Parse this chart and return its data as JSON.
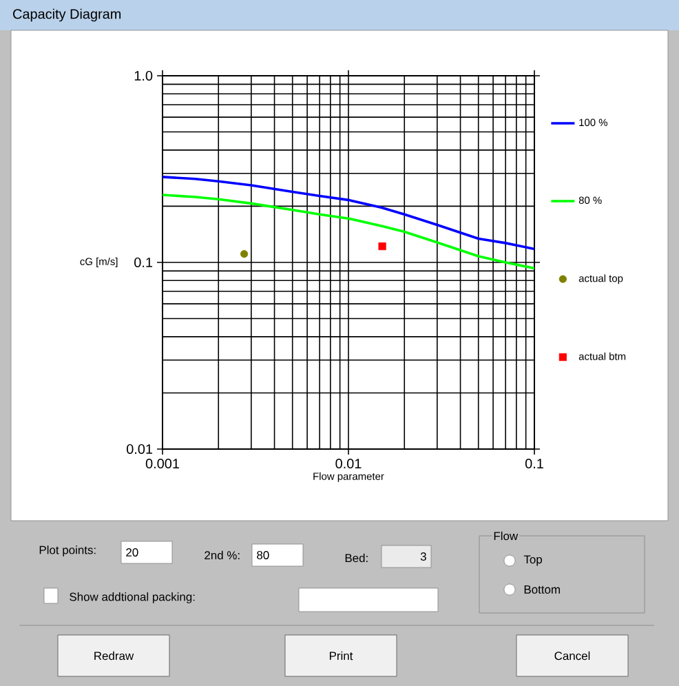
{
  "chart_data": {
    "type": "line",
    "title": "Capacity Diagram",
    "xlabel": "Flow parameter",
    "ylabel": "cG [m/s]",
    "log": "xy",
    "grid": true,
    "legend": "right",
    "xlim": [
      0.001,
      0.1
    ],
    "xticks": [
      0.001,
      0.01,
      0.1
    ],
    "ylim": [
      0.01,
      1
    ],
    "yticks": [
      0.01,
      0.1,
      {
        "value": 1,
        "label": "1.0"
      }
    ],
    "series": [
      {
        "name": "100 %",
        "color": "#0000ff",
        "marker": "none",
        "x": [
          0.001,
          0.0015,
          0.002,
          0.003,
          0.005,
          0.007,
          0.01,
          0.015,
          0.02,
          0.03,
          0.05,
          0.07,
          0.1
        ],
        "values": [
          0.287,
          0.28,
          0.272,
          0.259,
          0.239,
          0.227,
          0.216,
          0.197,
          0.181,
          0.159,
          0.134,
          0.127,
          0.118
        ]
      },
      {
        "name": "80 %",
        "color": "#00ff00",
        "marker": "none",
        "x": [
          0.001,
          0.0015,
          0.002,
          0.003,
          0.005,
          0.007,
          0.01,
          0.015,
          0.02,
          0.03,
          0.05,
          0.07,
          0.1
        ],
        "values": [
          0.23,
          0.224,
          0.218,
          0.207,
          0.191,
          0.181,
          0.172,
          0.157,
          0.146,
          0.128,
          0.108,
          0.1,
          0.093
        ]
      },
      {
        "name": "actual top",
        "type": "scatter",
        "color": "#808000",
        "marker": "circle",
        "x": [
          0.00275
        ],
        "values": [
          0.111
        ]
      },
      {
        "name": "actual btm",
        "type": "scatter",
        "color": "#ff0000",
        "marker": "square",
        "x": [
          0.0152
        ],
        "values": [
          0.122
        ]
      }
    ],
    "annotations": [
      "Plot points:",
      "20",
      "2nd %:",
      "80",
      "Bed:",
      "3",
      "Flow",
      "Top",
      "Bottom",
      "Show addtional packing:",
      "Redraw",
      "Print",
      "Cancel"
    ]
  }
}
